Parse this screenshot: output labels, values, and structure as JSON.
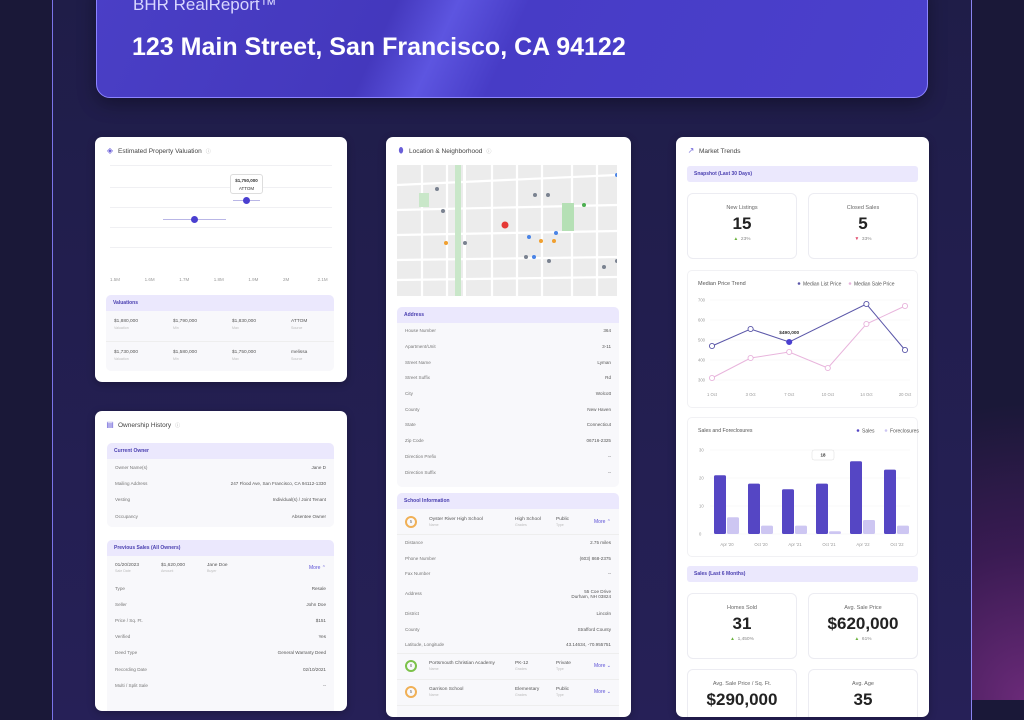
{
  "header": {
    "brand": "BHR RealReport™",
    "address": "123 Main Street, San Francisco, CA 94122"
  },
  "valuation": {
    "title": "Estimated Property Valuation",
    "icon": "tag-icon",
    "axis_ticks": [
      "1.5M",
      "1.6M",
      "1.7M",
      "1.8M",
      "1.9M",
      "2M",
      "2.1M"
    ],
    "tooltip": {
      "value": "$1,750,000",
      "source": "ATTOM"
    },
    "section": "Valuations",
    "rows": [
      {
        "valuation": "$1,880,000",
        "min": "$1,790,000",
        "max": "$1,830,000",
        "source": "ATTOM",
        "v": 1.88
      },
      {
        "valuation": "$1,730,000",
        "min": "$1,580,000",
        "max": "$1,750,000",
        "source": "melissa",
        "v": 1.73
      }
    ],
    "labels": {
      "valuation": "Valuation",
      "min": "Min",
      "max": "Max",
      "source": "Source"
    }
  },
  "ownership": {
    "title": "Ownership History",
    "icon": "document-icon",
    "current": {
      "title": "Current Owner",
      "rows": [
        {
          "k": "Owner Name(s)",
          "v": "Jane D"
        },
        {
          "k": "Mailing Address",
          "v": "247 Flood Ave, San Francisco, CA 94112-1330"
        },
        {
          "k": "Vesting",
          "v": "Individual(s) / Joint Tenant"
        },
        {
          "k": "Occupancy",
          "v": "Absentee Owner"
        }
      ]
    },
    "previous": {
      "title": "Previous Sales (All Owners)",
      "sale": {
        "date": "01/20/2023",
        "date_label": "Sale Date",
        "amount": "$1,620,000",
        "amount_label": "Amount",
        "buyer": "Jane Doe",
        "buyer_label": "Buyer",
        "more": "More"
      },
      "rows": [
        {
          "k": "Type",
          "v": "Resale"
        },
        {
          "k": "Seller",
          "v": "John Doe"
        },
        {
          "k": "Price / Sq. Ft.",
          "v": "$151"
        },
        {
          "k": "Verified",
          "v": "Yes"
        },
        {
          "k": "Deed Type",
          "v": "General Warranty Deed"
        },
        {
          "k": "Recording Date",
          "v": "02/10/2021"
        },
        {
          "k": "Multi / Split Sale",
          "v": "--"
        }
      ]
    }
  },
  "location": {
    "title": "Location & Neighborhood",
    "icon": "map-pin-icon",
    "address": {
      "title": "Address",
      "rows": [
        {
          "k": "House Number",
          "v": "364"
        },
        {
          "k": "Apartment/Unit",
          "v": "3-11"
        },
        {
          "k": "Street Name",
          "v": "Lyman"
        },
        {
          "k": "Street Suffix",
          "v": "Rd"
        },
        {
          "k": "City",
          "v": "Wolcott"
        },
        {
          "k": "County",
          "v": "New Haven"
        },
        {
          "k": "State",
          "v": "Connecticut"
        },
        {
          "k": "Zip Code",
          "v": "06716-2325"
        },
        {
          "k": "Direction Prefix",
          "v": "--"
        },
        {
          "k": "Direction Suffix",
          "v": "--"
        }
      ]
    },
    "schools": {
      "title": "School Information",
      "name_label": "Name",
      "grades_label": "Grades",
      "type_label": "Type",
      "more": "More",
      "list": [
        {
          "rating": "5",
          "name": "Oyster River High School",
          "grades": "High School",
          "type": "Public",
          "color": "#f0b056"
        },
        {
          "rating": "8",
          "name": "Portsmouth Christian Academy",
          "grades": "PK-12",
          "type": "Private",
          "color": "#7cc24a"
        },
        {
          "rating": "5",
          "name": "Garrison School",
          "grades": "Elementary",
          "type": "Public",
          "color": "#f0b056"
        }
      ],
      "details": [
        {
          "k": "Distance",
          "v": "2.75 miles"
        },
        {
          "k": "Phone Number",
          "v": "(603) 868-2375"
        },
        {
          "k": "Fax Number",
          "v": "--"
        },
        {
          "k": "Address",
          "v": "55 Coe Drive",
          "v2": "Durham, NH 03824"
        },
        {
          "k": "District",
          "v": "Lincoln"
        },
        {
          "k": "County",
          "v": "Strafford County"
        },
        {
          "k": "Latitude, Longitude",
          "v": "43.14634, -70.955751"
        }
      ]
    }
  },
  "market": {
    "title": "Market Trends",
    "icon": "trend-chart-icon",
    "snapshot": {
      "title": "Snapshot (Last 30 Days)",
      "stats": [
        {
          "label": "New Listings",
          "value": "15",
          "change": "23%",
          "dir": "up"
        },
        {
          "label": "Closed Sales",
          "value": "5",
          "change": "33%",
          "dir": "down"
        }
      ]
    },
    "sales": {
      "title": "Sales (Last 6 Months)",
      "stats": [
        {
          "label": "Homes Sold",
          "value": "31",
          "change": "1,450%",
          "dir": "up"
        },
        {
          "label": "Avg. Sale Price",
          "value": "$620,000",
          "change": "61%",
          "dir": "up"
        },
        {
          "label": "Avg. Sale Price / Sq. Ft.",
          "value": "$290,000"
        },
        {
          "label": "Avg. Age",
          "value": "35"
        }
      ]
    }
  },
  "chart_data": [
    {
      "type": "line",
      "title": "Median Price Trend",
      "categories": [
        "1 Oct",
        "3 Oct",
        "7 Oct",
        "10 Oct",
        "14 Oct",
        "20 Oct"
      ],
      "ylim": [
        300,
        700
      ],
      "yticks": [
        "300",
        "400",
        "500",
        "600",
        "700"
      ],
      "series": [
        {
          "name": "Median List Price",
          "values": [
            470,
            555,
            490,
            null,
            680,
            450
          ],
          "color": "#5a56a8"
        },
        {
          "name": "Median Sale Price",
          "values": [
            310,
            410,
            440,
            360,
            580,
            670
          ],
          "color": "#e8b4dc"
        }
      ],
      "tooltip": "$490,000",
      "legend": "top-right"
    },
    {
      "type": "bar",
      "title": "Sales and Foreclosures",
      "categories": [
        "Apr '20",
        "Oct '20",
        "Apr '21",
        "Oct '21",
        "Apr '22",
        "Oct '22"
      ],
      "ylim": [
        0,
        30
      ],
      "yticks": [
        "0",
        "10",
        "20",
        "30"
      ],
      "series": [
        {
          "name": "Sales",
          "values": [
            21,
            18,
            16,
            18,
            26,
            23
          ],
          "color": "#5546c4"
        },
        {
          "name": "Foreclosures",
          "values": [
            6,
            3,
            3,
            1,
            5,
            3
          ],
          "color": "#cdc6f2"
        }
      ],
      "tooltip": "18",
      "legend": "top-right"
    }
  ]
}
